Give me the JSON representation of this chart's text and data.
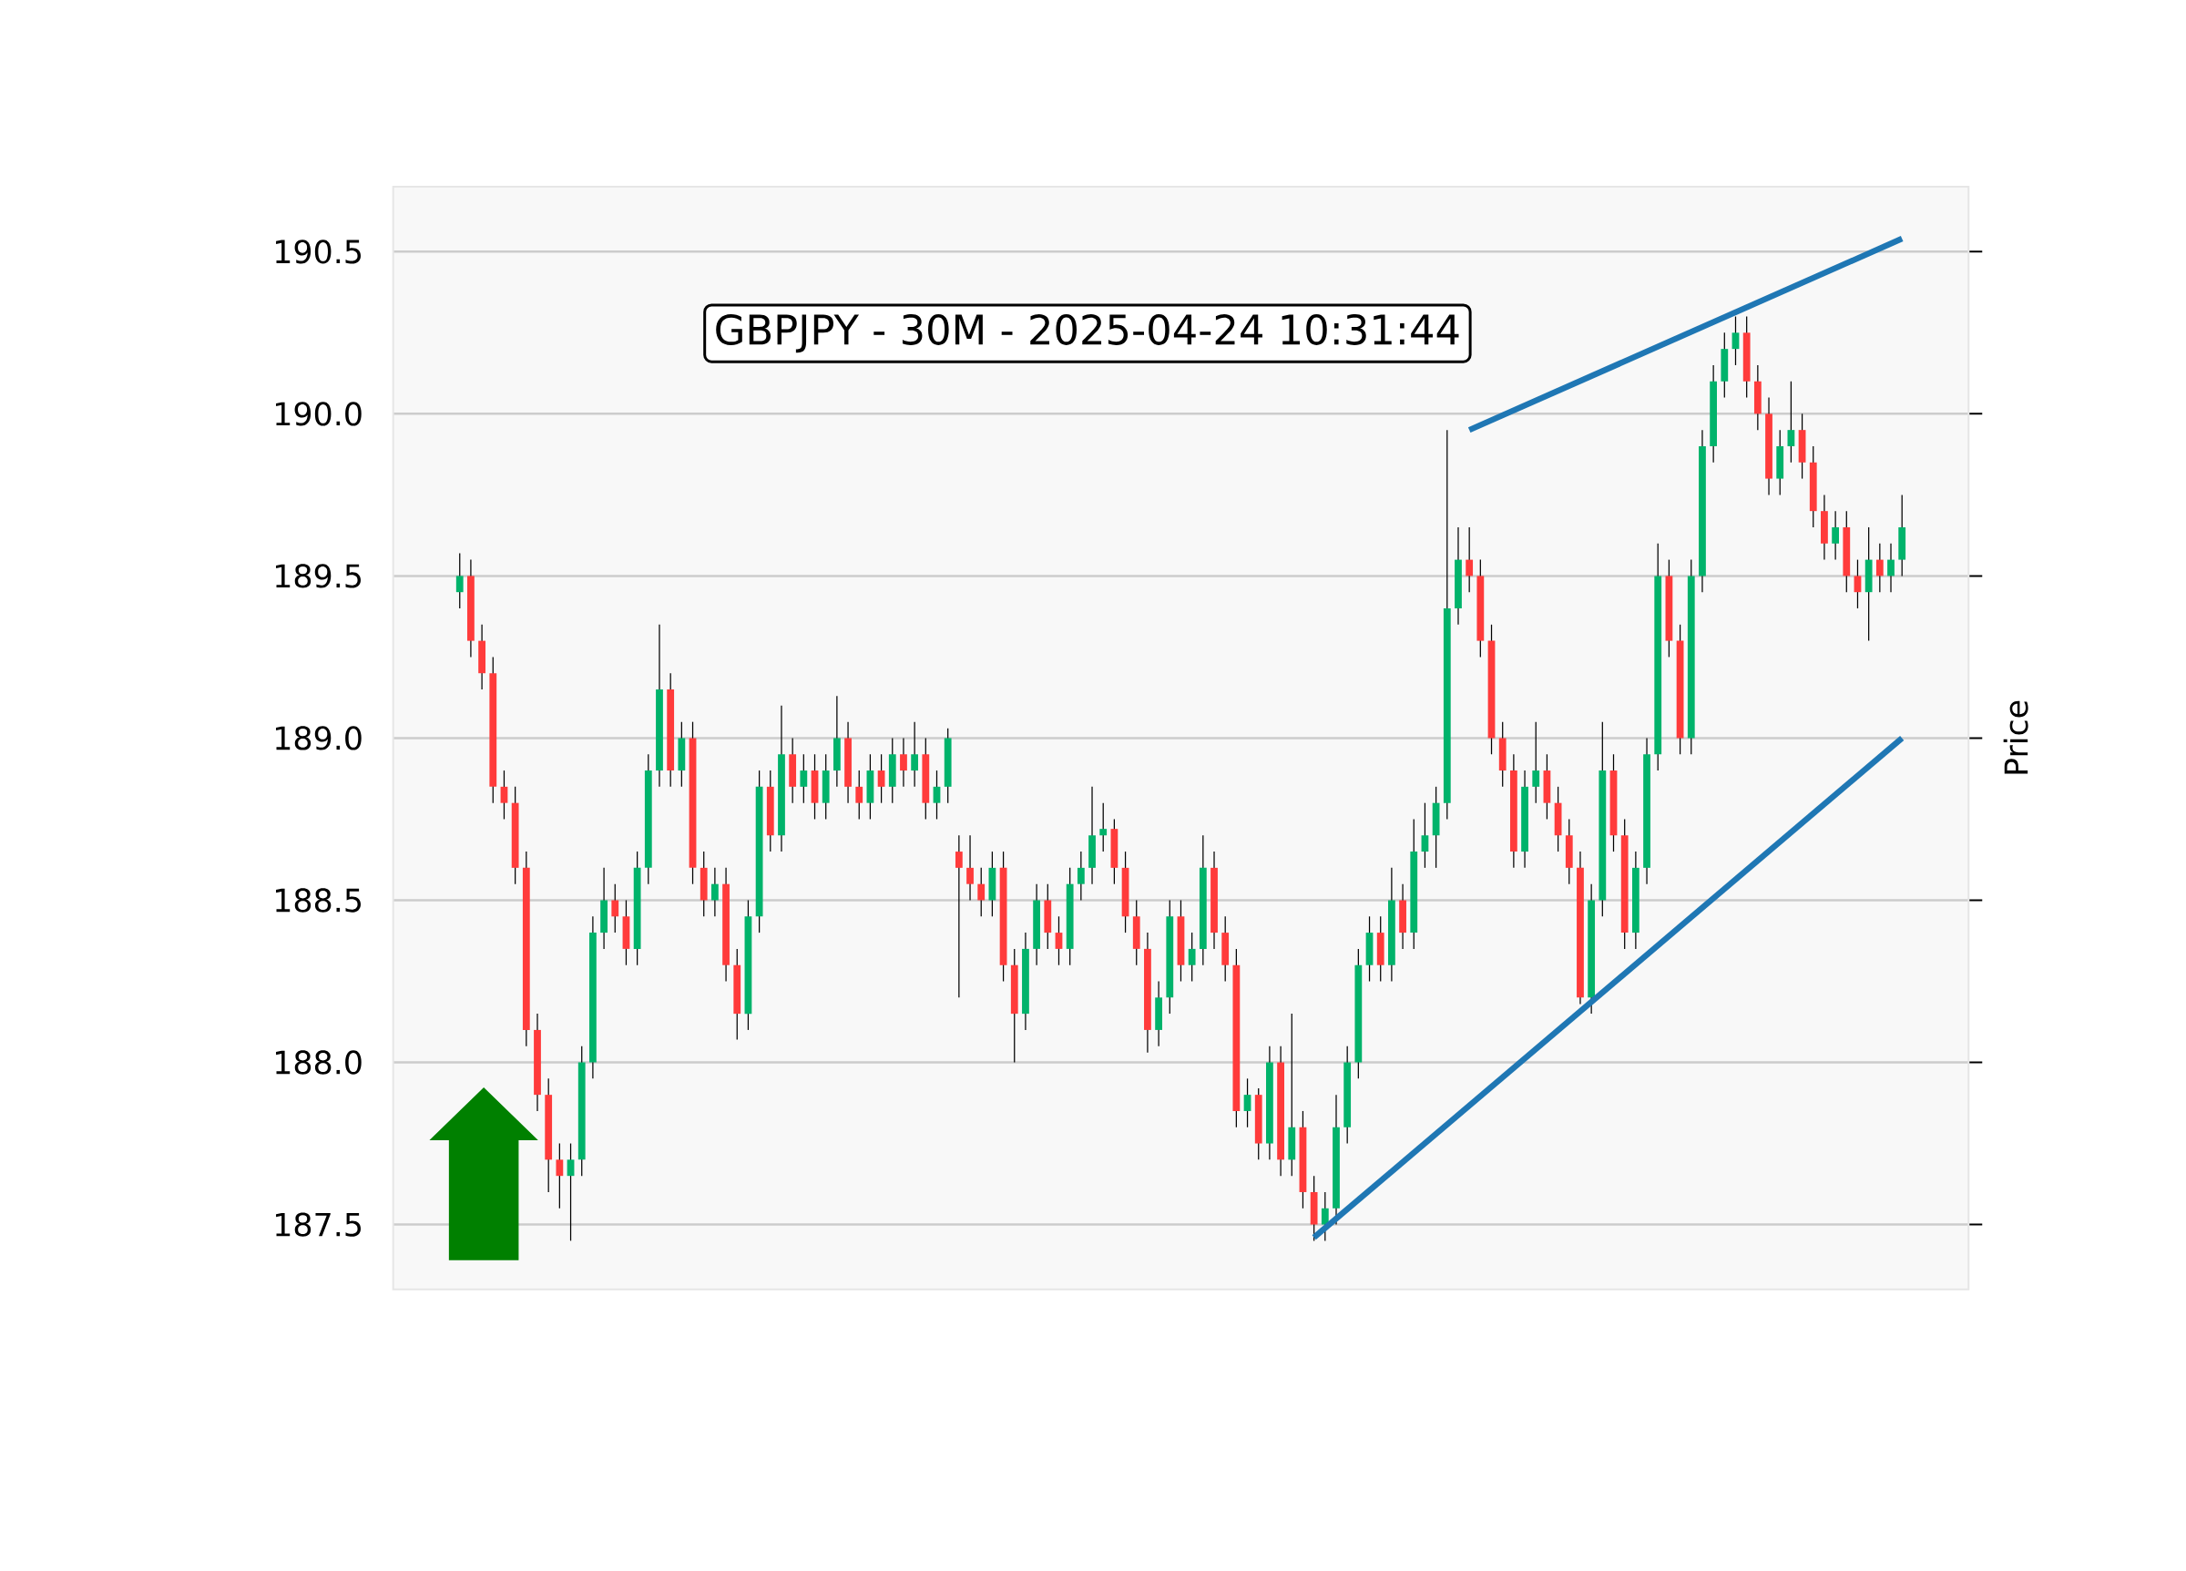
{
  "chart_data": {
    "type": "candlestick",
    "title": "GBPJPY - 30M - 2025-04-24 10:31:44",
    "ylabel": "Price",
    "categories": [
      null,
      null,
      null,
      null,
      null,
      null,
      null,
      null,
      null,
      null,
      null,
      null,
      null,
      null,
      null,
      null,
      null,
      null,
      null,
      null,
      null,
      null,
      null,
      null,
      null,
      null,
      null,
      null,
      null,
      null,
      null,
      null,
      null,
      null,
      null,
      null,
      null,
      null,
      null,
      null,
      null,
      null,
      null,
      null,
      null,
      null,
      null,
      null,
      null,
      null,
      null,
      null,
      null,
      null,
      null,
      null,
      null,
      null,
      null,
      null,
      null,
      null,
      null,
      null,
      null,
      null,
      null,
      null,
      null,
      null,
      null,
      null,
      null,
      null,
      null,
      null,
      null,
      null,
      null,
      null,
      null,
      null,
      null,
      null,
      null,
      null,
      null,
      null,
      null,
      null,
      null,
      null,
      null,
      null,
      null,
      null,
      null,
      null,
      null,
      null,
      null,
      null,
      null,
      null,
      null,
      null,
      null,
      null,
      null,
      null,
      null,
      null,
      null,
      null,
      null,
      null,
      null,
      null,
      null,
      null,
      null,
      null,
      null,
      null,
      null,
      null,
      null,
      null,
      null,
      null,
      null
    ],
    "ohlc": [
      [
        189.45,
        189.57,
        189.4,
        189.5
      ],
      [
        189.5,
        189.55,
        189.25,
        189.3
      ],
      [
        189.3,
        189.35,
        189.15,
        189.2
      ],
      [
        189.2,
        189.25,
        188.8,
        188.85
      ],
      [
        188.85,
        188.9,
        188.75,
        188.8
      ],
      [
        188.8,
        188.85,
        188.55,
        188.6
      ],
      [
        188.6,
        188.65,
        188.05,
        188.1
      ],
      [
        188.1,
        188.15,
        187.85,
        187.9
      ],
      [
        187.9,
        187.95,
        187.6,
        187.7
      ],
      [
        187.7,
        187.75,
        187.55,
        187.65
      ],
      [
        187.65,
        187.75,
        187.45,
        187.7
      ],
      [
        187.7,
        188.05,
        187.65,
        188.0
      ],
      [
        188.0,
        188.45,
        187.95,
        188.4
      ],
      [
        188.4,
        188.6,
        188.35,
        188.5
      ],
      [
        188.5,
        188.55,
        188.4,
        188.45
      ],
      [
        188.45,
        188.5,
        188.3,
        188.35
      ],
      [
        188.35,
        188.65,
        188.3,
        188.6
      ],
      [
        188.6,
        188.95,
        188.55,
        188.9
      ],
      [
        188.9,
        189.35,
        188.85,
        189.15
      ],
      [
        189.15,
        189.2,
        188.85,
        188.9
      ],
      [
        188.9,
        189.05,
        188.85,
        189.0
      ],
      [
        189.0,
        189.05,
        188.55,
        188.6
      ],
      [
        188.6,
        188.65,
        188.45,
        188.5
      ],
      [
        188.5,
        188.6,
        188.45,
        188.55
      ],
      [
        188.55,
        188.6,
        188.25,
        188.3
      ],
      [
        188.3,
        188.35,
        188.07,
        188.15
      ],
      [
        188.15,
        188.5,
        188.1,
        188.45
      ],
      [
        188.45,
        188.9,
        188.4,
        188.85
      ],
      [
        188.85,
        188.9,
        188.65,
        188.7
      ],
      [
        188.7,
        189.1,
        188.65,
        188.95
      ],
      [
        188.95,
        189.0,
        188.8,
        188.85
      ],
      [
        188.85,
        188.95,
        188.8,
        188.9
      ],
      [
        188.9,
        188.95,
        188.75,
        188.8
      ],
      [
        188.8,
        188.95,
        188.75,
        188.9
      ],
      [
        188.9,
        189.13,
        188.85,
        189.0
      ],
      [
        189.0,
        189.05,
        188.8,
        188.85
      ],
      [
        188.85,
        188.9,
        188.75,
        188.8
      ],
      [
        188.8,
        188.95,
        188.75,
        188.9
      ],
      [
        188.9,
        188.95,
        188.8,
        188.85
      ],
      [
        188.85,
        189.0,
        188.8,
        188.95
      ],
      [
        188.95,
        189.0,
        188.85,
        188.9
      ],
      [
        188.9,
        189.05,
        188.85,
        188.95
      ],
      [
        188.95,
        189.0,
        188.75,
        188.8
      ],
      [
        188.8,
        188.9,
        188.75,
        188.85
      ],
      [
        188.85,
        189.03,
        188.8,
        189.0
      ],
      [
        188.65,
        188.7,
        188.2,
        188.6
      ],
      [
        188.6,
        188.7,
        188.5,
        188.55
      ],
      [
        188.55,
        188.6,
        188.45,
        188.5
      ],
      [
        188.5,
        188.65,
        188.45,
        188.6
      ],
      [
        188.6,
        188.65,
        188.25,
        188.3
      ],
      [
        188.3,
        188.35,
        188.0,
        188.15
      ],
      [
        188.15,
        188.4,
        188.1,
        188.35
      ],
      [
        188.35,
        188.55,
        188.3,
        188.5
      ],
      [
        188.5,
        188.55,
        188.35,
        188.4
      ],
      [
        188.4,
        188.45,
        188.3,
        188.35
      ],
      [
        188.35,
        188.6,
        188.3,
        188.55
      ],
      [
        188.55,
        188.65,
        188.5,
        188.6
      ],
      [
        188.6,
        188.85,
        188.55,
        188.7
      ],
      [
        188.7,
        188.8,
        188.65,
        188.72
      ],
      [
        188.72,
        188.75,
        188.55,
        188.6
      ],
      [
        188.6,
        188.65,
        188.4,
        188.45
      ],
      [
        188.45,
        188.5,
        188.3,
        188.35
      ],
      [
        188.35,
        188.4,
        188.03,
        188.1
      ],
      [
        188.1,
        188.25,
        188.05,
        188.2
      ],
      [
        188.2,
        188.5,
        188.15,
        188.45
      ],
      [
        188.45,
        188.5,
        188.25,
        188.3
      ],
      [
        188.3,
        188.4,
        188.25,
        188.35
      ],
      [
        188.35,
        188.7,
        188.3,
        188.6
      ],
      [
        188.6,
        188.65,
        188.35,
        188.4
      ],
      [
        188.4,
        188.45,
        188.25,
        188.3
      ],
      [
        188.3,
        188.35,
        187.8,
        187.85
      ],
      [
        187.85,
        187.95,
        187.8,
        187.9
      ],
      [
        187.9,
        187.92,
        187.7,
        187.75
      ],
      [
        187.75,
        188.05,
        187.7,
        188.0
      ],
      [
        188.0,
        188.05,
        187.65,
        187.7
      ],
      [
        187.7,
        188.15,
        187.65,
        187.8
      ],
      [
        187.8,
        187.85,
        187.55,
        187.6
      ],
      [
        187.6,
        187.65,
        187.45,
        187.5
      ],
      [
        187.5,
        187.6,
        187.45,
        187.55
      ],
      [
        187.55,
        187.9,
        187.5,
        187.8
      ],
      [
        187.8,
        188.05,
        187.75,
        188.0
      ],
      [
        188.0,
        188.35,
        187.95,
        188.3
      ],
      [
        188.3,
        188.45,
        188.25,
        188.4
      ],
      [
        188.4,
        188.45,
        188.25,
        188.3
      ],
      [
        188.3,
        188.6,
        188.25,
        188.5
      ],
      [
        188.5,
        188.55,
        188.35,
        188.4
      ],
      [
        188.4,
        188.75,
        188.35,
        188.65
      ],
      [
        188.65,
        188.8,
        188.6,
        188.7
      ],
      [
        188.7,
        188.85,
        188.6,
        188.8
      ],
      [
        188.8,
        189.95,
        188.75,
        189.4
      ],
      [
        189.4,
        189.65,
        189.35,
        189.55
      ],
      [
        189.55,
        189.65,
        189.45,
        189.5
      ],
      [
        189.5,
        189.55,
        189.25,
        189.3
      ],
      [
        189.3,
        189.35,
        188.95,
        189.0
      ],
      [
        189.0,
        189.05,
        188.85,
        188.9
      ],
      [
        188.9,
        188.95,
        188.6,
        188.65
      ],
      [
        188.65,
        188.9,
        188.6,
        188.85
      ],
      [
        188.85,
        189.05,
        188.8,
        188.9
      ],
      [
        188.9,
        188.95,
        188.75,
        188.8
      ],
      [
        188.8,
        188.85,
        188.65,
        188.7
      ],
      [
        188.7,
        188.75,
        188.55,
        188.6
      ],
      [
        188.6,
        188.65,
        188.18,
        188.2
      ],
      [
        188.2,
        188.55,
        188.15,
        188.5
      ],
      [
        188.5,
        189.05,
        188.45,
        188.9
      ],
      [
        188.9,
        188.95,
        188.65,
        188.7
      ],
      [
        188.7,
        188.75,
        188.35,
        188.4
      ],
      [
        188.4,
        188.65,
        188.35,
        188.6
      ],
      [
        188.6,
        189.0,
        188.55,
        188.95
      ],
      [
        188.95,
        189.6,
        188.9,
        189.5
      ],
      [
        189.5,
        189.55,
        189.25,
        189.3
      ],
      [
        189.3,
        189.35,
        188.95,
        189.0
      ],
      [
        189.0,
        189.55,
        188.95,
        189.5
      ],
      [
        189.5,
        189.95,
        189.45,
        189.9
      ],
      [
        189.9,
        190.15,
        189.85,
        190.1
      ],
      [
        190.1,
        190.25,
        190.05,
        190.2
      ],
      [
        190.2,
        190.3,
        190.15,
        190.25
      ],
      [
        190.25,
        190.3,
        190.05,
        190.1
      ],
      [
        190.1,
        190.15,
        189.95,
        190.0
      ],
      [
        190.0,
        190.05,
        189.75,
        189.8
      ],
      [
        189.8,
        189.95,
        189.75,
        189.9
      ],
      [
        189.9,
        190.1,
        189.85,
        189.95
      ],
      [
        189.95,
        190.0,
        189.8,
        189.85
      ],
      [
        189.85,
        189.9,
        189.65,
        189.7
      ],
      [
        189.7,
        189.75,
        189.55,
        189.6
      ],
      [
        189.6,
        189.7,
        189.55,
        189.65
      ],
      [
        189.65,
        189.7,
        189.45,
        189.5
      ],
      [
        189.5,
        189.55,
        189.4,
        189.45
      ],
      [
        189.45,
        189.65,
        189.3,
        189.55
      ],
      [
        189.55,
        189.6,
        189.45,
        189.5
      ],
      [
        189.5,
        189.6,
        189.45,
        189.55
      ],
      [
        189.55,
        189.75,
        189.5,
        189.65
      ]
    ],
    "series": [
      {
        "type": "line",
        "color": "#1f77b4",
        "values": [
          null,
          null,
          null,
          null,
          null,
          null,
          null,
          null,
          null,
          null,
          null,
          null,
          null,
          null,
          null,
          null,
          null,
          null,
          null,
          null,
          null,
          null,
          null,
          null,
          null,
          null,
          null,
          null,
          null,
          null,
          null,
          null,
          null,
          null,
          null,
          null,
          null,
          null,
          null,
          null,
          null,
          null,
          null,
          null,
          null,
          null,
          null,
          null,
          null,
          null,
          null,
          null,
          null,
          null,
          null,
          null,
          null,
          null,
          null,
          null,
          null,
          null,
          null,
          null,
          null,
          null,
          null,
          null,
          null,
          null,
          null,
          null,
          null,
          null,
          null,
          null,
          null,
          187.46,
          null,
          null,
          null,
          null,
          null,
          null,
          null,
          null,
          null,
          null,
          null,
          null,
          null,
          null,
          null,
          null,
          null,
          null,
          null,
          null,
          null,
          null,
          null,
          null,
          null,
          null,
          null,
          null,
          null,
          null,
          null,
          null,
          null,
          null,
          null,
          null,
          null,
          null,
          null,
          null,
          null,
          null,
          null,
          null,
          null,
          null,
          null,
          null,
          null,
          null,
          null,
          null,
          189.0
        ]
      },
      {
        "type": "line",
        "color": "#1f77b4",
        "values": [
          null,
          null,
          null,
          null,
          null,
          null,
          null,
          null,
          null,
          null,
          null,
          null,
          null,
          null,
          null,
          null,
          null,
          null,
          null,
          null,
          null,
          null,
          null,
          null,
          null,
          null,
          null,
          null,
          null,
          null,
          null,
          null,
          null,
          null,
          null,
          null,
          null,
          null,
          null,
          null,
          null,
          null,
          null,
          null,
          null,
          null,
          null,
          null,
          null,
          null,
          null,
          null,
          null,
          null,
          null,
          null,
          null,
          null,
          null,
          null,
          null,
          null,
          null,
          null,
          null,
          null,
          null,
          null,
          null,
          null,
          null,
          null,
          null,
          null,
          null,
          null,
          null,
          null,
          null,
          null,
          null,
          null,
          null,
          null,
          null,
          null,
          null,
          null,
          null,
          null,
          null,
          189.95,
          null,
          null,
          null,
          null,
          null,
          null,
          null,
          null,
          null,
          null,
          null,
          null,
          null,
          null,
          null,
          null,
          null,
          null,
          null,
          null,
          null,
          null,
          null,
          null,
          null,
          null,
          null,
          null,
          null,
          null,
          null,
          null,
          null,
          null,
          null,
          null,
          null,
          null,
          190.54
        ]
      }
    ],
    "ylim": [
      187.3,
      190.7
    ],
    "yticks": [
      {
        "value": 187.5,
        "label": "187.5"
      },
      {
        "value": 188.0,
        "label": "188.0"
      },
      {
        "value": 188.5,
        "label": "188.5"
      },
      {
        "value": 189.0,
        "label": "189.0"
      },
      {
        "value": 189.5,
        "label": "189.5"
      },
      {
        "value": 190.0,
        "label": "190.0"
      },
      {
        "value": 190.5,
        "label": "190.5"
      }
    ],
    "grid": "y",
    "tick_labels": "y"
  }
}
